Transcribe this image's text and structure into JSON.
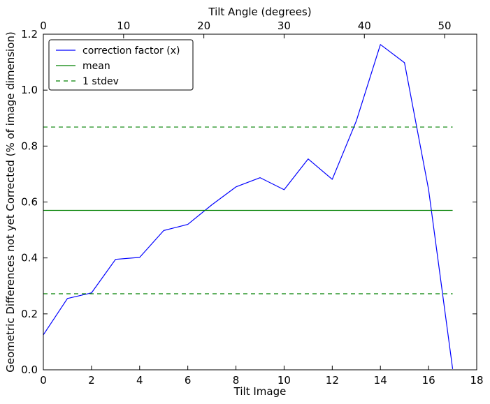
{
  "chart_data": {
    "type": "line",
    "xlabel": "Tilt Image",
    "ylabel": "Geometric Differences not yet Corrected (% of image dimension)",
    "top_xlabel": "Tilt Angle (degrees)",
    "xlim": [
      0,
      18
    ],
    "ylim": [
      0,
      1.2
    ],
    "top_xlim": [
      0,
      54
    ],
    "x_ticks": [
      0,
      2,
      4,
      6,
      8,
      10,
      12,
      14,
      16,
      18
    ],
    "y_ticks": [
      0.0,
      0.2,
      0.4,
      0.6,
      0.8,
      1.0,
      1.2
    ],
    "top_x_ticks": [
      0,
      10,
      20,
      30,
      40,
      50
    ],
    "x_tick_labels": [
      "0",
      "2",
      "4",
      "6",
      "8",
      "10",
      "12",
      "14",
      "16",
      "18"
    ],
    "y_tick_labels": [
      "0.0",
      "0.2",
      "0.4",
      "0.6",
      "0.8",
      "1.0",
      "1.2"
    ],
    "top_x_tick_labels": [
      "0",
      "10",
      "20",
      "30",
      "40",
      "50"
    ],
    "grid": false,
    "legend_position": "top-left",
    "series": [
      {
        "name": "correction factor (x)",
        "color": "#0000ff",
        "style": "solid",
        "x": [
          0,
          1,
          2,
          3,
          4,
          5,
          6,
          7,
          8,
          9,
          10,
          11,
          12,
          13,
          14,
          15,
          16,
          17
        ],
        "values": [
          0.125,
          0.255,
          0.275,
          0.395,
          0.402,
          0.498,
          0.52,
          0.59,
          0.654,
          0.687,
          0.644,
          0.754,
          0.681,
          0.89,
          1.163,
          1.098,
          0.645,
          0.003
        ]
      },
      {
        "name": "mean",
        "color": "#008000",
        "style": "solid",
        "x": [
          0,
          17
        ],
        "values": [
          0.57,
          0.57
        ]
      },
      {
        "name": "1 stdev",
        "color": "#008000",
        "style": "dashed",
        "x": [
          0,
          17
        ],
        "values": [
          0.868,
          0.868
        ]
      },
      {
        "name": "",
        "color": "#008000",
        "style": "dashed",
        "x": [
          0,
          17
        ],
        "values": [
          0.272,
          0.272
        ]
      }
    ]
  }
}
